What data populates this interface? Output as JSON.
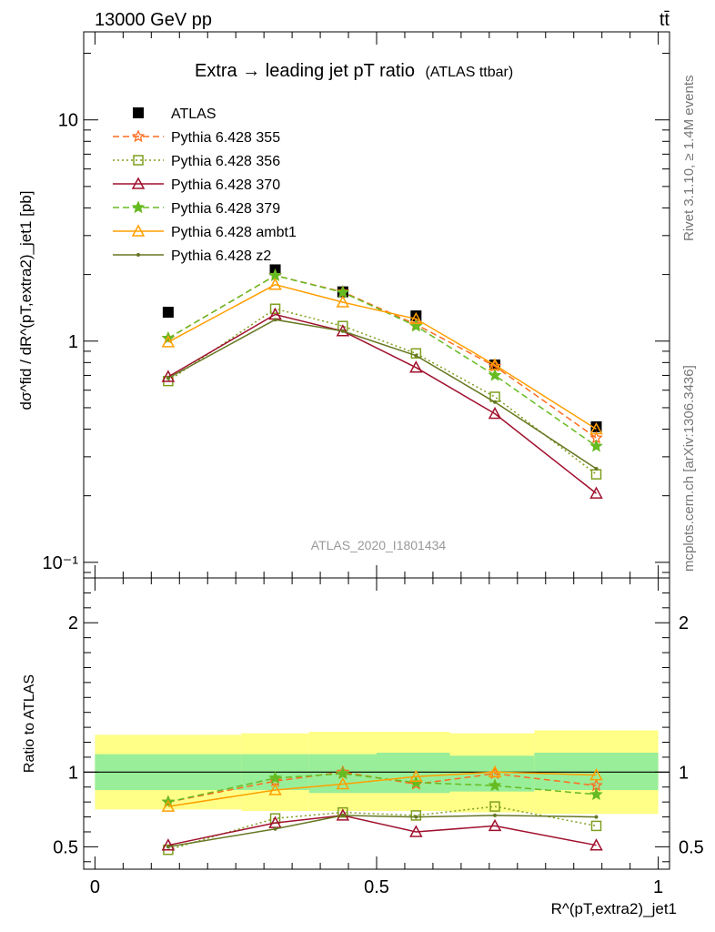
{
  "header": {
    "left": "13000 GeV pp",
    "right": "tt̄"
  },
  "side_labels": {
    "rivet": "Rivet 3.1.10, ≥ 1.4M events",
    "mcplots": "mcplots.cern.ch [arXiv:1306.3436]"
  },
  "chart_data": [
    {
      "type": "line",
      "panel": "main",
      "title": "Extra → leading jet pT ratio",
      "title_note": "(ATLAS ttbar)",
      "ylabel": "dσ^fid / dR^(pT,extra2)_jet1 [pb]",
      "yscale": "log",
      "ylim": [
        0.085,
        25
      ],
      "y_ticks": [
        "10⁻¹",
        "1",
        "10"
      ],
      "watermark": "ATLAS_2020_I1801434",
      "legend_position": "top-left",
      "x": [
        0.13,
        0.32,
        0.44,
        0.57,
        0.71,
        0.89
      ],
      "series": [
        {
          "name": "ATLAS",
          "color": "#000000",
          "style": "data",
          "marker": "square-filled",
          "values": [
            1.35,
            2.1,
            1.67,
            1.3,
            0.78,
            0.41
          ]
        },
        {
          "name": "Pythia 6.428 355",
          "color": "#ff6d1f",
          "style": "dashed",
          "marker": "star-open",
          "values": [
            1.03,
            1.98,
            1.67,
            1.19,
            0.77,
            0.365
          ]
        },
        {
          "name": "Pythia 6.428 356",
          "color": "#7f9f1f",
          "style": "dotted",
          "marker": "square-open",
          "values": [
            0.66,
            1.4,
            1.17,
            0.88,
            0.56,
            0.25
          ]
        },
        {
          "name": "Pythia 6.428 370",
          "color": "#a0102d",
          "style": "solid",
          "marker": "triangle-open",
          "values": [
            0.69,
            1.32,
            1.11,
            0.76,
            0.47,
            0.205
          ]
        },
        {
          "name": "Pythia 6.428 379",
          "color": "#66bb22",
          "style": "dashed",
          "marker": "star-filled",
          "values": [
            1.03,
            1.98,
            1.66,
            1.17,
            0.7,
            0.335
          ]
        },
        {
          "name": "Pythia 6.428 ambt1",
          "color": "#ff9f00",
          "style": "solid",
          "marker": "triangle-open",
          "values": [
            0.99,
            1.8,
            1.5,
            1.26,
            0.78,
            0.4
          ]
        },
        {
          "name": "Pythia 6.428 z2",
          "color": "#667722",
          "style": "solid",
          "marker": "dot",
          "values": [
            0.68,
            1.25,
            1.11,
            0.86,
            0.53,
            0.265
          ]
        }
      ]
    },
    {
      "type": "line",
      "panel": "ratio",
      "ylabel": "Ratio to ATLAS",
      "xlabel": "R^(pT,extra2)_jet1",
      "xlim": [
        -0.02,
        1.02
      ],
      "ylim": [
        0.35,
        2.3
      ],
      "x_ticks": [
        "0",
        "0.5",
        "1"
      ],
      "y_ticks": [
        "0.5",
        "1",
        "2"
      ],
      "bins": [
        [
          0.0,
          0.26
        ],
        [
          0.26,
          0.38
        ],
        [
          0.38,
          0.5
        ],
        [
          0.5,
          0.63
        ],
        [
          0.63,
          0.78
        ],
        [
          0.78,
          1.0
        ]
      ],
      "band_inner": [
        [
          0.88,
          1.12
        ],
        [
          0.88,
          1.12
        ],
        [
          0.86,
          1.12
        ],
        [
          0.86,
          1.13
        ],
        [
          0.87,
          1.11
        ],
        [
          0.88,
          1.13
        ]
      ],
      "band_outer": [
        [
          0.75,
          1.25
        ],
        [
          0.74,
          1.26
        ],
        [
          0.74,
          1.27
        ],
        [
          0.74,
          1.27
        ],
        [
          0.73,
          1.26
        ],
        [
          0.72,
          1.28
        ]
      ],
      "x": [
        0.13,
        0.32,
        0.44,
        0.57,
        0.71,
        0.89
      ],
      "series": [
        {
          "name": "Pythia 6.428 355",
          "color": "#ff6d1f",
          "style": "dashed",
          "marker": "star-open",
          "values": [
            0.8,
            0.94,
            1.0,
            0.92,
            0.99,
            0.91
          ]
        },
        {
          "name": "Pythia 6.428 356",
          "color": "#7f9f1f",
          "style": "dotted",
          "marker": "square-open",
          "values": [
            0.48,
            0.69,
            0.73,
            0.71,
            0.77,
            0.64
          ]
        },
        {
          "name": "Pythia 6.428 370",
          "color": "#a0102d",
          "style": "solid",
          "marker": "triangle-open",
          "values": [
            0.51,
            0.66,
            0.71,
            0.6,
            0.64,
            0.51
          ]
        },
        {
          "name": "Pythia 6.428 379",
          "color": "#66bb22",
          "style": "dashed",
          "marker": "star-filled",
          "values": [
            0.8,
            0.96,
            0.99,
            0.93,
            0.91,
            0.85
          ]
        },
        {
          "name": "Pythia 6.428 ambt1",
          "color": "#ff9f00",
          "style": "solid",
          "marker": "triangle-open",
          "values": [
            0.77,
            0.88,
            0.92,
            0.97,
            1.0,
            0.98
          ]
        },
        {
          "name": "Pythia 6.428 z2",
          "color": "#667722",
          "style": "solid",
          "marker": "dot",
          "values": [
            0.5,
            0.62,
            0.71,
            0.7,
            0.71,
            0.7
          ]
        }
      ]
    }
  ]
}
